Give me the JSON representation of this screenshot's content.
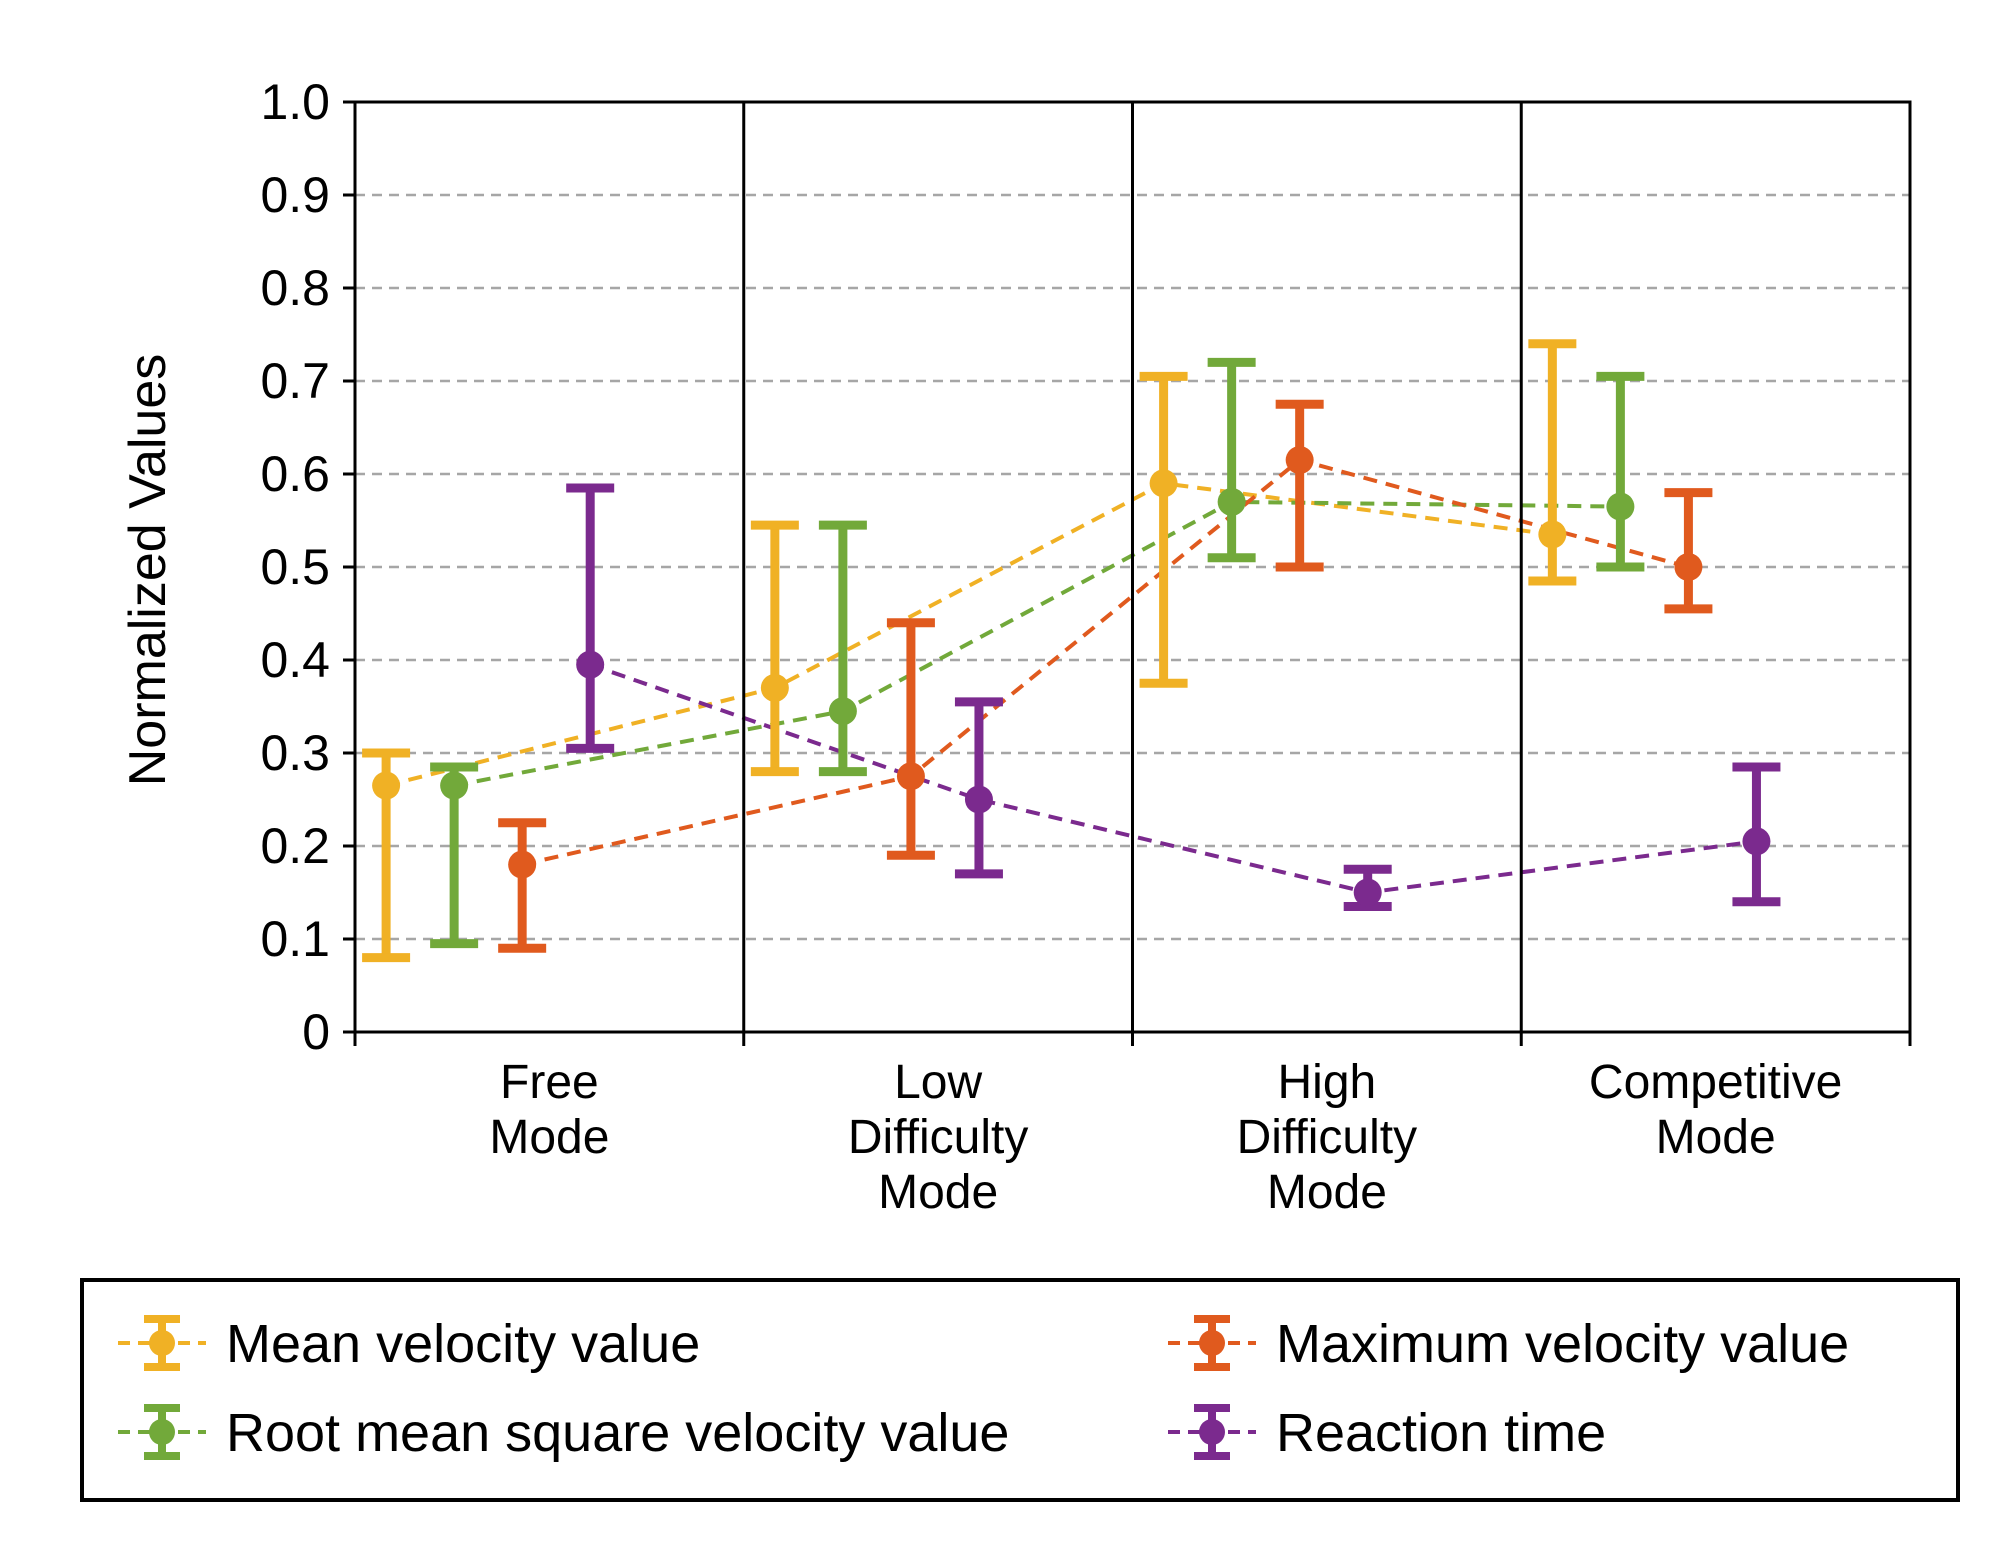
{
  "chart_data": {
    "type": "line",
    "title": "",
    "xlabel": "",
    "ylabel": "Normalized Values",
    "ylim": [
      0,
      1.0
    ],
    "yticks": [
      "0",
      "0.1",
      "0.2",
      "0.3",
      "0.4",
      "0.5",
      "0.6",
      "0.7",
      "0.8",
      "0.9",
      "1.0"
    ],
    "grid": "horizontal dashed",
    "legend_position": "bottom",
    "categories": [
      [
        "Free",
        "Mode"
      ],
      [
        "Low",
        "Difficulty",
        "Mode"
      ],
      [
        "High",
        "Difficulty",
        "Mode"
      ],
      [
        "Competitive",
        "Mode"
      ]
    ],
    "series": [
      {
        "name": "Mean velocity value",
        "color": "#F0B125",
        "values": [
          0.265,
          0.37,
          0.59,
          0.535
        ],
        "err_low": [
          0.08,
          0.28,
          0.375,
          0.485
        ],
        "err_high": [
          0.3,
          0.545,
          0.705,
          0.74
        ]
      },
      {
        "name": "Root mean square velocity value",
        "color": "#72A93A",
        "values": [
          0.265,
          0.345,
          0.57,
          0.565
        ],
        "err_low": [
          0.095,
          0.28,
          0.51,
          0.5
        ],
        "err_high": [
          0.285,
          0.545,
          0.72,
          0.705
        ]
      },
      {
        "name": "Maximum velocity value",
        "color": "#E05A1E",
        "values": [
          0.18,
          0.275,
          0.615,
          0.5
        ],
        "err_low": [
          0.09,
          0.19,
          0.5,
          0.455
        ],
        "err_high": [
          0.225,
          0.44,
          0.675,
          0.58
        ]
      },
      {
        "name": "Reaction time",
        "color": "#7B2A8E",
        "values": [
          0.395,
          0.25,
          0.15,
          0.205
        ],
        "err_low": [
          0.305,
          0.17,
          0.135,
          0.14
        ],
        "err_high": [
          0.585,
          0.355,
          0.175,
          0.285
        ]
      }
    ]
  }
}
